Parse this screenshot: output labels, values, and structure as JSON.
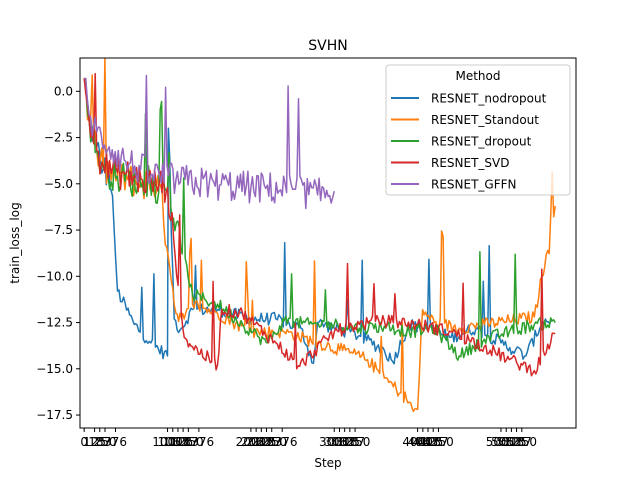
{
  "chart_data": {
    "type": "line",
    "title": "SVHN",
    "xlabel": "Step",
    "ylabel": "train_loss_log",
    "xlim": [
      -50,
      5900
    ],
    "ylim": [
      -18.2,
      1.8
    ],
    "yticks": [
      0.0,
      -2.5,
      -5.0,
      -7.5,
      -10.0,
      -12.5,
      -15.0,
      -17.5
    ],
    "ytick_labels": [
      "0.0",
      "−2.5",
      "−5.0",
      "−7.5",
      "−10.0",
      "−12.5",
      "−15.0",
      "−17.5"
    ],
    "xticks": [
      0,
      125,
      187,
      250,
      376,
      1000,
      1063,
      1125,
      1187,
      1250,
      1376,
      2000,
      2063,
      2125,
      2187,
      2250,
      2376,
      3000,
      3063,
      3125,
      3187,
      3250,
      4000,
      4063,
      4125,
      4187,
      4250,
      5000,
      5063,
      5125,
      5187,
      5250
    ],
    "xtick_labels": [
      "0",
      "125",
      "187",
      "250",
      "376",
      "1000",
      "1063",
      "1125",
      "1187",
      "1250",
      "1376",
      "2000",
      "2063",
      "2125",
      "2187",
      "2250",
      "2376",
      "3000",
      "3063",
      "3125",
      "3187",
      "3250",
      "4000",
      "4063",
      "4125",
      "4187",
      "4250",
      "5000",
      "5063",
      "5125",
      "5187",
      "5250"
    ],
    "legend": {
      "title": "Method",
      "position": "top-right"
    },
    "series": [
      {
        "name": "RESNET_nodropout",
        "color": "#1f77b4",
        "x": [
          0,
          60,
          150,
          230,
          300,
          320,
          360,
          400,
          600,
          800,
          1000,
          1010,
          1080,
          1150,
          1300,
          1600,
          2000,
          2300,
          2600,
          2750,
          2800,
          3000,
          3300,
          3600,
          3700,
          3900,
          4100,
          4400,
          4700,
          5000,
          5300,
          5500,
          5600
        ],
        "y": [
          0.7,
          -1.5,
          -3.0,
          -4.2,
          -4.5,
          -5.3,
          -7.5,
          -10.8,
          -12.6,
          -13.6,
          -14.3,
          -2.0,
          -12.3,
          -12.9,
          -11.8,
          -11.8,
          -12.3,
          -12.3,
          -12.8,
          -14.7,
          -12.5,
          -12.8,
          -13.2,
          -14.0,
          -14.6,
          -12.6,
          -12.8,
          -13.3,
          -12.8,
          -13.6,
          -14.3,
          -12.4,
          -12.4
        ]
      },
      {
        "name": "RESNET_Standout",
        "color": "#ff7f0e",
        "x": [
          0,
          60,
          150,
          230,
          400,
          700,
          900,
          1100,
          1200,
          1300,
          1600,
          2000,
          2400,
          2800,
          3100,
          3400,
          3600,
          3800,
          3900,
          3950,
          4000,
          4060,
          4200,
          4500,
          4800,
          5100,
          5400,
          5650
        ],
        "y": [
          0.7,
          -1.6,
          -3.2,
          -4.2,
          -4.6,
          -5.0,
          -5.0,
          -12.0,
          -12.3,
          -11.5,
          -12.0,
          -13.0,
          -13.0,
          -13.6,
          -14.0,
          -14.5,
          -15.5,
          -16.3,
          -16.8,
          -17.3,
          -17.2,
          -11.8,
          -12.5,
          -12.8,
          -12.6,
          -12.4,
          -12.2,
          -6.2
        ]
      },
      {
        "name": "RESNET_dropout",
        "color": "#2ca02c",
        "x": [
          0,
          60,
          150,
          230,
          400,
          700,
          1000,
          1300,
          1600,
          1900,
          2100,
          2200,
          2400,
          2700,
          3000,
          3300,
          3600,
          3900,
          4200,
          4500,
          4800,
          5100,
          5400,
          5650
        ],
        "y": [
          0.7,
          -1.6,
          -3.2,
          -4.2,
          -4.6,
          -5.0,
          -5.3,
          -11.0,
          -11.5,
          -12.6,
          -13.3,
          -13.6,
          -12.4,
          -12.6,
          -12.6,
          -12.8,
          -12.7,
          -13.0,
          -12.8,
          -14.3,
          -13.4,
          -13.0,
          -12.6,
          -12.5
        ]
      },
      {
        "name": "RESNET_SVD",
        "color": "#d62728",
        "x": [
          0,
          60,
          150,
          230,
          400,
          700,
          900,
          1000,
          1200,
          1300,
          1600,
          1650,
          1900,
          2000,
          2300,
          2500,
          2550,
          3000,
          3300,
          3600,
          4000,
          4400,
          4800,
          5100,
          5400,
          5650
        ],
        "y": [
          0.7,
          -1.6,
          -3.2,
          -4.0,
          -4.4,
          -4.8,
          -5.0,
          -5.2,
          -13.3,
          -13.8,
          -14.8,
          -11.8,
          -12.0,
          -12.4,
          -13.6,
          -14.5,
          -15.0,
          -13.0,
          -12.6,
          -12.4,
          -12.6,
          -13.0,
          -13.8,
          -14.5,
          -15.1,
          -13.1
        ]
      },
      {
        "name": "RESNET_GFFN",
        "color": "#9467bd",
        "x": [
          0,
          60,
          150,
          300,
          500,
          800,
          1100,
          1500,
          2000,
          2500,
          2800,
          3000
        ],
        "y": [
          0.7,
          -1.3,
          -2.2,
          -3.0,
          -3.8,
          -4.5,
          -4.8,
          -5.0,
          -5.2,
          -5.3,
          -5.6,
          -5.4
        ]
      }
    ]
  }
}
